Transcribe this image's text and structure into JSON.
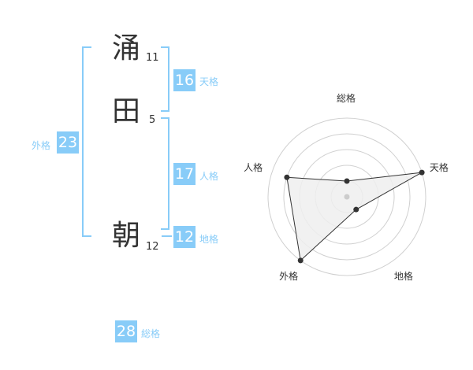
{
  "name": {
    "chars": [
      {
        "char": "涌",
        "strokes": "11"
      },
      {
        "char": "田",
        "strokes": "5"
      },
      {
        "char": "朝",
        "strokes": "12"
      }
    ]
  },
  "kaku": {
    "tenkaku": {
      "value": "16",
      "label": "天格"
    },
    "jinkaku": {
      "value": "17",
      "label": "人格"
    },
    "chikaku": {
      "value": "12",
      "label": "地格"
    },
    "gaikaku": {
      "value": "23",
      "label": "外格"
    },
    "soukaku": {
      "value": "28",
      "label": "総格"
    }
  },
  "colors": {
    "accent": "#88ccf8",
    "fill": "#eeeeee",
    "line": "#333333"
  },
  "chart_data": {
    "type": "radar",
    "categories": [
      "総格",
      "天格",
      "地格",
      "外格",
      "人格"
    ],
    "values": [
      1,
      5,
      1,
      5,
      4
    ],
    "range": [
      0,
      5
    ],
    "rings": 5
  }
}
